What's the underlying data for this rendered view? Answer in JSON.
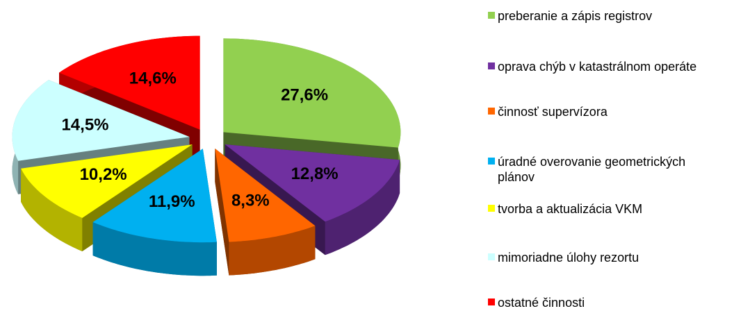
{
  "chart_data": {
    "type": "pie3d",
    "categories": [
      "preberanie a zápis registrov",
      "oprava chýb v katastrálnom operáte",
      "činnosť supervízora",
      "úradné overovanie geometrických plánov",
      "tvorba a aktualizácia VKM",
      "mimoriadne úlohy rezortu",
      "ostatné činnosti"
    ],
    "values": [
      27.6,
      12.8,
      8.3,
      11.9,
      10.2,
      14.5,
      14.6
    ],
    "value_labels": [
      "27,6%",
      "12,8%",
      "8,3%",
      "11,9%",
      "10,2%",
      "14,5%",
      "14,6%"
    ],
    "colors": [
      "#92d050",
      "#7030a0",
      "#ff6600",
      "#00b0f0",
      "#ffff00",
      "#ccffff",
      "#ff0000"
    ],
    "legend": "right"
  }
}
